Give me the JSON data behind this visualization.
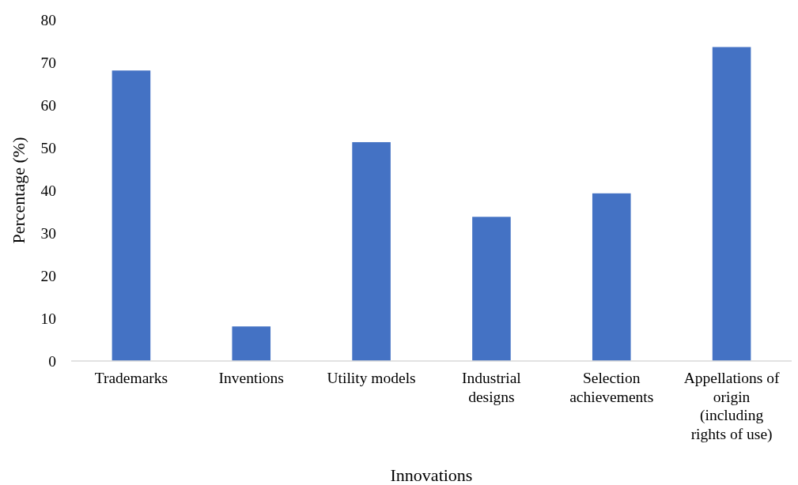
{
  "chart_data": {
    "type": "bar",
    "xlabel": "Innovations",
    "ylabel": "Percentage (%)",
    "categories": [
      "Trademarks",
      "Inventions",
      "Utility models",
      "Industrial designs",
      "Selection achievements",
      "Appellations of origin (including rights of use)"
    ],
    "values": [
      68.1,
      8.1,
      51.3,
      33.8,
      39.3,
      73.6
    ],
    "color": "#4472c4",
    "ylim": [
      0,
      80
    ],
    "yticks": [
      0,
      10,
      20,
      30,
      40,
      50,
      60,
      70,
      80
    ],
    "grid": false
  }
}
